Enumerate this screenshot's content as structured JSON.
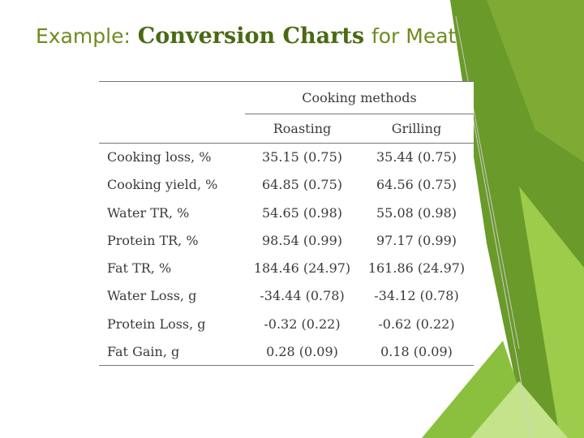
{
  "slide": {
    "title_prefix": "Example:",
    "title_emphasis": "Conversion Charts",
    "title_suffix": "for Meat"
  },
  "table": {
    "group_header": "Cooking methods",
    "columns": [
      "Roasting",
      "Grilling"
    ],
    "rows": [
      {
        "label": "Cooking loss, %",
        "values": [
          "35.15 (0.75)",
          "35.44 (0.75)"
        ]
      },
      {
        "label": "Cooking yield, %",
        "values": [
          "64.85 (0.75)",
          "64.56 (0.75)"
        ]
      },
      {
        "label": "Water TR, %",
        "values": [
          "54.65 (0.98)",
          "55.08 (0.98)"
        ]
      },
      {
        "label": "Protein TR, %",
        "values": [
          "98.54 (0.99)",
          "97.17 (0.99)"
        ]
      },
      {
        "label": "Fat TR, %",
        "values": [
          "184.46 (24.97)",
          "161.86 (24.97)"
        ]
      },
      {
        "label": "Water Loss, g",
        "values": [
          "-34.44 (0.78)",
          "-34.12 (0.78)"
        ]
      },
      {
        "label": "Protein Loss, g",
        "values": [
          "-0.32 (0.22)",
          "-0.62 (0.22)"
        ]
      },
      {
        "label": "Fat Gain, g",
        "values": [
          "0.28 (0.09)",
          "0.18 (0.09)"
        ]
      }
    ]
  },
  "colors": {
    "title": "#6f8b21",
    "accent_dark": "#5a7d1c",
    "accent_mid": "#8cbf3a",
    "accent_light": "#b9dd6a"
  }
}
